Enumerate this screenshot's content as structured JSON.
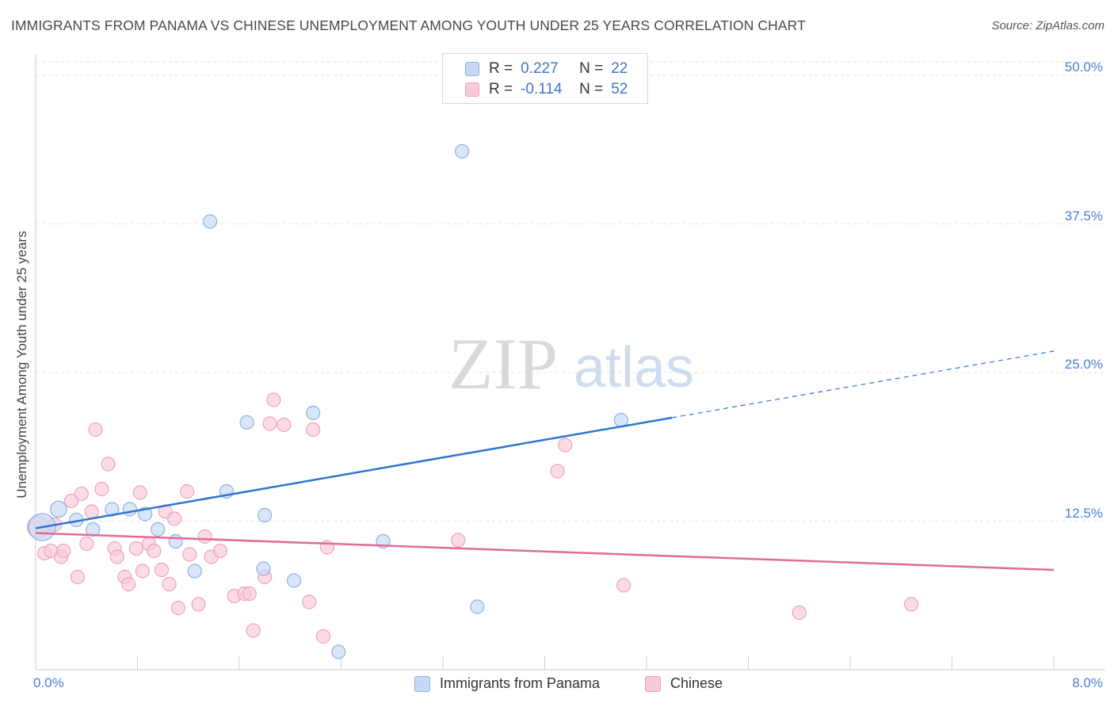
{
  "header": {
    "title": "IMMIGRANTS FROM PANAMA VS CHINESE UNEMPLOYMENT AMONG YOUTH UNDER 25 YEARS CORRELATION CHART",
    "source": "Source: ZipAtlas.com"
  },
  "watermark": {
    "zip": "ZIP",
    "atlas": "atlas"
  },
  "legend": {
    "panama": {
      "r_label": "R =",
      "r_value": "0.227",
      "n_label": "N =",
      "n_value": "22"
    },
    "chinese": {
      "r_label": "R =",
      "r_value": "-0.114",
      "n_label": "N =",
      "n_value": "52"
    }
  },
  "colors": {
    "panama_fill": "#c5d9f5",
    "panama_stroke": "#8cb0e3",
    "panama_line": "#2f74d0",
    "chinese_fill": "#f9c9d8",
    "chinese_stroke": "#eea2bb",
    "chinese_line": "#e06b98",
    "grid": "#e3e3e3",
    "tick_text": "#4a7fcf"
  },
  "chart_data": {
    "type": "scatter",
    "title": "IMMIGRANTS FROM PANAMA VS CHINESE UNEMPLOYMENT AMONG YOUTH UNDER 25 YEARS CORRELATION CHART",
    "xlabel": "",
    "ylabel": "Unemployment Among Youth under 25 years",
    "xlim": [
      0,
      8
    ],
    "ylim": [
      0,
      50
    ],
    "x_tick_labels": [
      "0.0%",
      "8.0%"
    ],
    "y_ticks": [
      12.5,
      25.0,
      37.5,
      50.0
    ],
    "y_tick_labels": [
      "12.5%",
      "25.0%",
      "37.5%",
      "50.0%"
    ],
    "legend_position": "bottom",
    "series": [
      {
        "name": "Immigrants from Panama",
        "r": 0.227,
        "n": 22,
        "trend": {
          "x0": 0.0,
          "y0": 11.9,
          "x1": 5.0,
          "y1": 21.2,
          "dashed_to_x": 8.0,
          "dashed_to_y": 26.8
        },
        "points": [
          [
            0.05,
            12.0,
            2.0
          ],
          [
            0.18,
            13.5,
            1.2
          ],
          [
            0.32,
            12.6,
            1
          ],
          [
            0.45,
            11.8,
            1
          ],
          [
            0.6,
            13.5,
            1
          ],
          [
            0.74,
            13.5,
            1
          ],
          [
            0.86,
            13.1,
            1
          ],
          [
            0.96,
            11.8,
            1
          ],
          [
            1.1,
            10.8,
            1
          ],
          [
            1.25,
            8.3,
            1
          ],
          [
            1.37,
            37.7,
            1
          ],
          [
            1.5,
            15.0,
            1
          ],
          [
            1.66,
            20.8,
            1
          ],
          [
            1.8,
            13.0,
            1
          ],
          [
            1.79,
            8.5,
            1
          ],
          [
            2.03,
            7.5,
            1
          ],
          [
            2.18,
            21.6,
            1
          ],
          [
            2.38,
            1.5,
            1
          ],
          [
            2.73,
            10.8,
            1
          ],
          [
            3.35,
            43.6,
            1
          ],
          [
            3.47,
            5.3,
            1
          ],
          [
            4.6,
            21.0,
            1
          ]
        ]
      },
      {
        "name": "Chinese",
        "r": -0.114,
        "n": 52,
        "trend": {
          "x0": 0.0,
          "y0": 11.5,
          "x1": 8.0,
          "y1": 8.4
        },
        "points": [
          [
            0.02,
            12.0,
            1.6
          ],
          [
            0.07,
            9.8,
            1
          ],
          [
            0.12,
            10.0,
            1
          ],
          [
            0.15,
            12.2,
            1
          ],
          [
            0.2,
            9.5,
            1
          ],
          [
            0.22,
            10.0,
            1
          ],
          [
            0.28,
            14.2,
            1
          ],
          [
            0.33,
            7.8,
            1
          ],
          [
            0.36,
            14.8,
            1
          ],
          [
            0.4,
            10.6,
            1
          ],
          [
            0.44,
            13.3,
            1
          ],
          [
            0.47,
            20.2,
            1
          ],
          [
            0.52,
            15.2,
            1
          ],
          [
            0.57,
            17.3,
            1
          ],
          [
            0.62,
            10.2,
            1
          ],
          [
            0.64,
            9.5,
            1
          ],
          [
            0.7,
            7.8,
            1
          ],
          [
            0.73,
            7.2,
            1
          ],
          [
            0.79,
            10.2,
            1
          ],
          [
            0.82,
            14.9,
            1
          ],
          [
            0.84,
            8.3,
            1
          ],
          [
            0.89,
            10.6,
            1
          ],
          [
            0.93,
            10.0,
            1
          ],
          [
            0.99,
            8.4,
            1
          ],
          [
            1.02,
            13.3,
            1
          ],
          [
            1.05,
            7.2,
            1
          ],
          [
            1.09,
            12.7,
            1
          ],
          [
            1.12,
            5.2,
            1
          ],
          [
            1.19,
            15.0,
            1
          ],
          [
            1.21,
            9.7,
            1
          ],
          [
            1.28,
            5.5,
            1
          ],
          [
            1.33,
            11.2,
            1
          ],
          [
            1.38,
            9.5,
            1
          ],
          [
            1.45,
            10.0,
            1
          ],
          [
            1.56,
            6.2,
            1
          ],
          [
            1.64,
            6.4,
            1
          ],
          [
            1.68,
            6.4,
            1
          ],
          [
            1.71,
            3.3,
            1
          ],
          [
            1.8,
            7.8,
            1
          ],
          [
            1.84,
            20.7,
            1
          ],
          [
            1.87,
            22.7,
            1
          ],
          [
            1.95,
            20.6,
            1
          ],
          [
            2.15,
            5.7,
            1
          ],
          [
            2.18,
            20.2,
            1
          ],
          [
            2.26,
            2.8,
            1
          ],
          [
            2.29,
            10.3,
            1
          ],
          [
            3.32,
            10.9,
            1
          ],
          [
            4.1,
            16.7,
            1
          ],
          [
            4.16,
            18.9,
            1
          ],
          [
            4.62,
            7.1,
            1
          ],
          [
            6.0,
            4.8,
            1
          ],
          [
            6.88,
            5.5,
            1
          ]
        ]
      }
    ]
  },
  "bottom_legend": {
    "panama": "Immigrants from Panama",
    "chinese": "Chinese"
  }
}
